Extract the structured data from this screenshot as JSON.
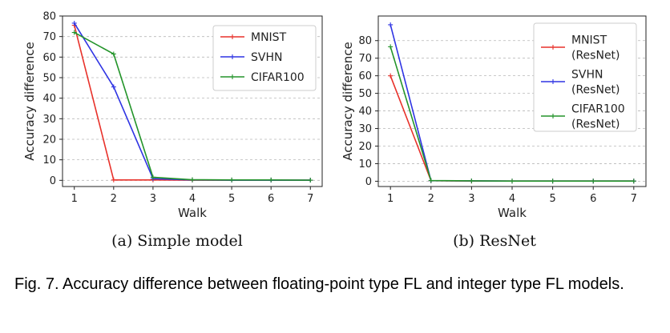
{
  "figure": {
    "caption": "Fig. 7. Accuracy difference between floating-point type FL and integer type FL models."
  },
  "chart_data": [
    {
      "type": "line",
      "subcaption": "(a) Simple model",
      "xlabel": "Walk",
      "ylabel": "Accuracy difference",
      "x": [
        1,
        2,
        3,
        4,
        5,
        6,
        7
      ],
      "xticks": [
        "1",
        "2",
        "3",
        "4",
        "5",
        "6",
        "7"
      ],
      "ylim": [
        -3,
        80
      ],
      "yticks": [
        "0",
        "10",
        "20",
        "30",
        "40",
        "50",
        "60",
        "70",
        "80"
      ],
      "grid": "horizontal dashed",
      "legend_position": "top-right",
      "series": [
        {
          "name": "MNIST",
          "color": "#e8312a",
          "values": [
            75.5,
            0.2,
            0.2,
            0.1,
            0.1,
            0.1,
            0.1
          ]
        },
        {
          "name": "SVHN",
          "color": "#2f34e3",
          "values": [
            76.5,
            45.5,
            0.8,
            0.2,
            0.1,
            0.1,
            0.1
          ]
        },
        {
          "name": "CIFAR100",
          "color": "#23942a",
          "values": [
            72,
            61.5,
            1.5,
            0.3,
            0.2,
            0.2,
            0.1
          ]
        }
      ]
    },
    {
      "type": "line",
      "subcaption": "(b) ResNet",
      "xlabel": "Walk",
      "ylabel": "Accuracy difference",
      "x": [
        1,
        2,
        3,
        4,
        5,
        6,
        7
      ],
      "xticks": [
        "1",
        "2",
        "3",
        "4",
        "5",
        "6",
        "7"
      ],
      "ylim": [
        -3,
        94
      ],
      "yticks": [
        "0",
        "10",
        "20",
        "30",
        "40",
        "50",
        "60",
        "70",
        "80"
      ],
      "grid": "horizontal dashed",
      "legend_position": "top-right",
      "series": [
        {
          "name": "MNIST\n(ResNet)",
          "color": "#e8312a",
          "values": [
            60,
            0.3,
            0.1,
            0.1,
            0.1,
            0.1,
            0.1
          ]
        },
        {
          "name": "SVHN\n(ResNet)",
          "color": "#2f34e3",
          "values": [
            89,
            0.3,
            0.2,
            0.1,
            0.1,
            0.1,
            0.1
          ]
        },
        {
          "name": "CIFAR100\n(ResNet)",
          "color": "#23942a",
          "values": [
            76.5,
            0.4,
            0.2,
            0.1,
            0.1,
            0.1,
            0.1
          ]
        }
      ]
    }
  ]
}
